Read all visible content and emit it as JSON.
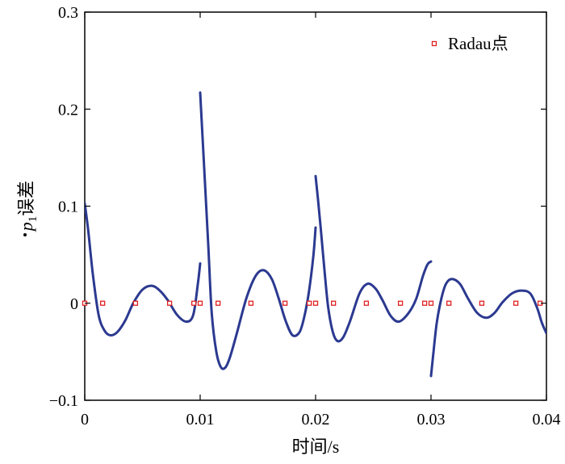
{
  "chart_data": {
    "type": "line",
    "title": "",
    "xlabel": "时间/s",
    "ylabel": {
      "symbol": "p",
      "subscript": "1",
      "suffix": "误差"
    },
    "xlim": [
      0,
      0.04
    ],
    "ylim": [
      -0.1,
      0.3
    ],
    "xticks": [
      0,
      0.01,
      0.02,
      0.03,
      0.04
    ],
    "xtick_labels": [
      "0",
      "0.01",
      "0.02",
      "0.03",
      "0.04"
    ],
    "yticks": [
      -0.1,
      0,
      0.1,
      0.2,
      0.3
    ],
    "ytick_labels": [
      "−0.1",
      "0",
      "0.1",
      "0.2",
      "0.3"
    ],
    "grid": false,
    "legend_placement": "top-right",
    "series": [
      {
        "color": "#2b3990",
        "segments": [
          {
            "x": [
              0,
              0.0003,
              0.0007,
              0.0012,
              0.0017,
              0.0022,
              0.0028,
              0.0035,
              0.0042,
              0.005,
              0.0058,
              0.0065,
              0.0072,
              0.008,
              0.0088,
              0.0094,
              0.0098,
              0.01
            ],
            "y": [
              0.103,
              0.075,
              0.03,
              -0.012,
              -0.028,
              -0.033,
              -0.03,
              -0.018,
              0.0,
              0.014,
              0.018,
              0.013,
              0.003,
              -0.012,
              -0.019,
              -0.012,
              0.02,
              0.041
            ]
          },
          {
            "x": [
              0.01,
              0.0103,
              0.0107,
              0.011,
              0.0114,
              0.0118,
              0.0122,
              0.0126,
              0.0132,
              0.014,
              0.0148,
              0.0155,
              0.0162,
              0.0168,
              0.0174,
              0.018,
              0.0186,
              0.019,
              0.0194,
              0.0198,
              0.02
            ],
            "y": [
              0.217,
              0.15,
              0.06,
              -0.01,
              -0.05,
              -0.066,
              -0.066,
              -0.055,
              -0.03,
              0.005,
              0.028,
              0.034,
              0.025,
              0.005,
              -0.018,
              -0.033,
              -0.03,
              -0.015,
              0.01,
              0.048,
              0.078
            ]
          },
          {
            "x": [
              0.02,
              0.0202,
              0.0205,
              0.0208,
              0.0211,
              0.0215,
              0.0219,
              0.0224,
              0.023,
              0.0238,
              0.0245,
              0.0252,
              0.0258,
              0.0265,
              0.0272,
              0.028,
              0.0287,
              0.0293,
              0.0297,
              0.03
            ],
            "y": [
              0.131,
              0.108,
              0.07,
              0.03,
              -0.005,
              -0.03,
              -0.039,
              -0.035,
              -0.018,
              0.01,
              0.02,
              0.015,
              0.003,
              -0.013,
              -0.019,
              -0.011,
              0.004,
              0.028,
              0.04,
              0.043
            ]
          },
          {
            "x": [
              0.03,
              0.0302,
              0.0305,
              0.0309,
              0.0313,
              0.0318,
              0.0325,
              0.0332,
              0.034,
              0.0348,
              0.0355,
              0.0362,
              0.037,
              0.0378,
              0.0386,
              0.0392,
              0.0396,
              0.04
            ],
            "y": [
              -0.075,
              -0.052,
              -0.02,
              0.005,
              0.02,
              0.025,
              0.02,
              0.005,
              -0.01,
              -0.015,
              -0.01,
              0.001,
              0.01,
              0.013,
              0.01,
              -0.005,
              -0.02,
              -0.031
            ]
          }
        ]
      }
    ],
    "markers": {
      "name": "Radau点",
      "color": "#e02020",
      "shape": "square-open",
      "x": [
        0,
        0.00155,
        0.0044,
        0.00735,
        0.00945,
        0.01,
        0.01155,
        0.0144,
        0.01735,
        0.01945,
        0.02,
        0.02155,
        0.0244,
        0.02735,
        0.02945,
        0.03,
        0.03155,
        0.0344,
        0.03735,
        0.03945
      ],
      "y": [
        0,
        0,
        0,
        0,
        0,
        0,
        0,
        0,
        0,
        0,
        0,
        0,
        0,
        0,
        0,
        0,
        0,
        0,
        0,
        0
      ]
    }
  }
}
